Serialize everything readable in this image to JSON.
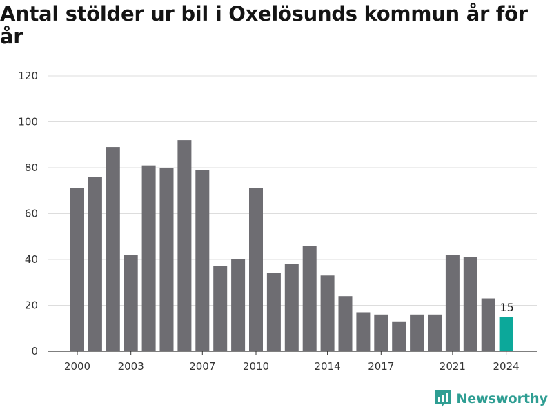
{
  "title": "Antal stölder ur bil i Oxelösunds kommun år för år",
  "brand": {
    "name": "Newsworthy",
    "logo_icon": "newsworthy-chart-icon"
  },
  "colors": {
    "bar": "#6e6d72",
    "highlight": "#0ca89a",
    "grid": "#dddddd",
    "brand": "#2f9e93"
  },
  "chart_data": {
    "type": "bar",
    "x": [
      2000,
      2001,
      2002,
      2003,
      2004,
      2005,
      2006,
      2007,
      2008,
      2009,
      2010,
      2011,
      2012,
      2013,
      2014,
      2015,
      2016,
      2017,
      2018,
      2019,
      2020,
      2021,
      2022,
      2023,
      2024
    ],
    "values": [
      71,
      76,
      89,
      42,
      81,
      80,
      92,
      79,
      37,
      40,
      71,
      34,
      38,
      46,
      33,
      24,
      17,
      16,
      13,
      16,
      16,
      42,
      41,
      23,
      15
    ],
    "highlight_index": 24,
    "data_labels": [
      {
        "index": 24,
        "text": "15"
      }
    ],
    "x_ticks": [
      2000,
      2003,
      2007,
      2010,
      2014,
      2017,
      2021,
      2024
    ],
    "y_ticks": [
      0,
      20,
      40,
      60,
      80,
      100,
      120
    ],
    "ylim": [
      0,
      120
    ],
    "grid": true,
    "xlabel": "",
    "ylabel": ""
  }
}
